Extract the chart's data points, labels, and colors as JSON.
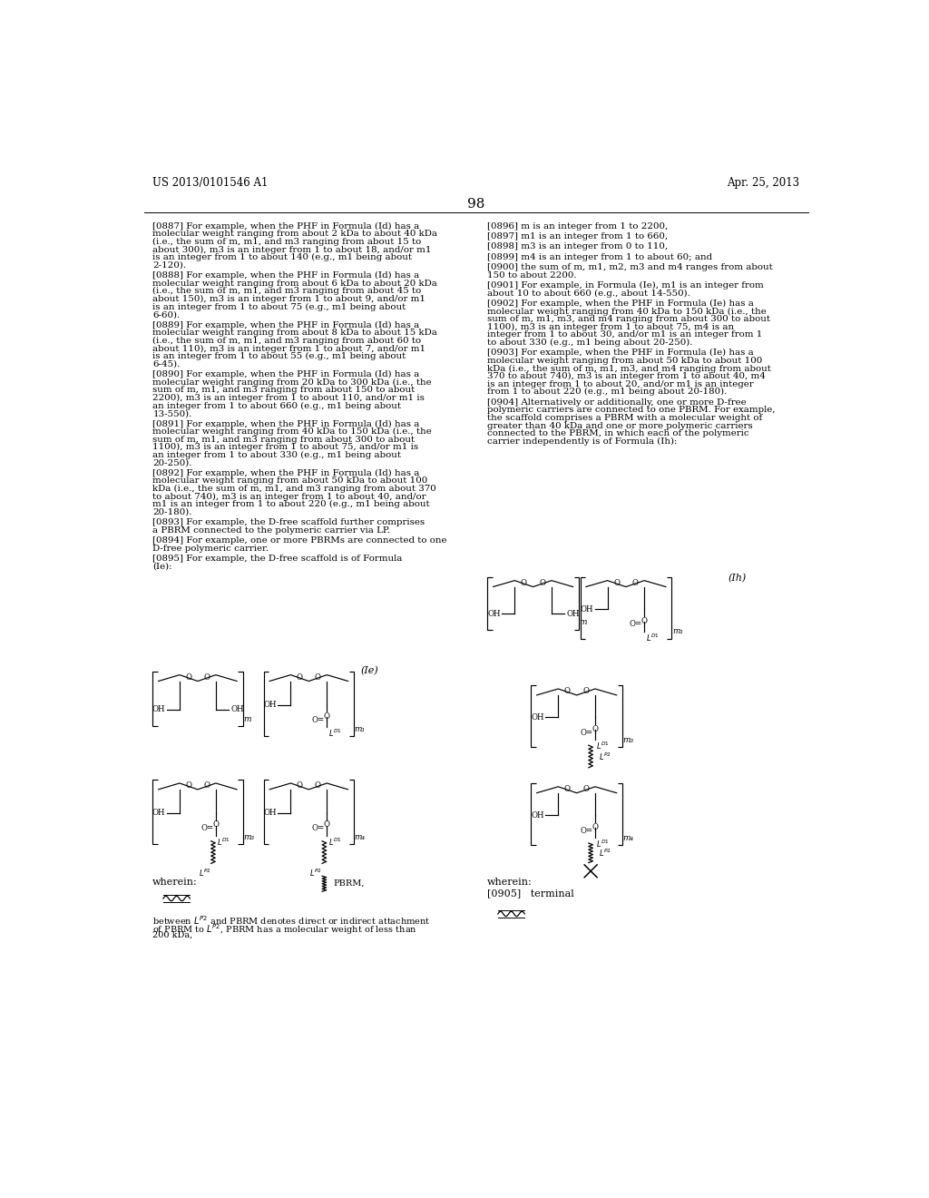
{
  "page_number": "98",
  "patent_number": "US 2013/0101546 A1",
  "patent_date": "Apr. 25, 2013",
  "background_color": "#ffffff",
  "text_color": "#000000",
  "left_col": [
    {
      "tag": "[0887]",
      "text": "For example, when the PHF in Formula (Id) has a molecular weight ranging from about 2 kDa to about 40 kDa (i.e., the sum of m, m1, and m3 ranging from about 15 to about 300), m3 is an integer from 1 to about 18, and/or m1 is an integer from 1 to about 140 (e.g., m1 being about 2-120)."
    },
    {
      "tag": "[0888]",
      "text": "For example, when the PHF in Formula (Id) has a molecular weight ranging from about 6 kDa to about 20 kDa (i.e., the sum of m, m1, and m3 ranging from about 45 to about 150), m3 is an integer from 1 to about 9, and/or m1 is an integer from 1 to about 75 (e.g., m1 being about 6-60)."
    },
    {
      "tag": "[0889]",
      "text": "For example, when the PHF in Formula (Id) has a molecular weight ranging from about 8 kDa to about 15 kDa (i.e., the sum of m, m1, and m3 ranging from about 60 to about 110), m3 is an integer from 1 to about 7, and/or m1 is an integer from 1 to about 55 (e.g., m1 being about 6-45)."
    },
    {
      "tag": "[0890]",
      "text": "For example, when the PHF in Formula (Id) has a molecular weight ranging from 20 kDa to 300 kDa (i.e., the sum of m, m1, and m3 ranging from about 150 to about 2200), m3 is an integer from 1 to about 110, and/or m1 is an integer from 1 to about 660 (e.g., m1 being about 13-550)."
    },
    {
      "tag": "[0891]",
      "text": "For example, when the PHF in Formula (Id) has a molecular weight ranging from 40 kDa to 150 kDa (i.e., the sum of m, m1, and m3 ranging from about 300 to about 1100), m3 is an integer from 1 to about 75, and/or m1 is an integer from 1 to about 330 (e.g., m1 being about 20-250)."
    },
    {
      "tag": "[0892]",
      "text": "For example, when the PHF in Formula (Id) has a molecular weight ranging from about 50 kDa to about 100 kDa (i.e., the sum of m, m1, and m3 ranging from about 370 to about 740), m3 is an integer from 1 to about 40, and/or m1 is an integer from 1 to about 220 (e.g., m1 being about 20-180)."
    },
    {
      "tag": "[0893]",
      "text": "For example, the D-free scaffold further comprises a PBRM connected to the polymeric carrier via LP."
    },
    {
      "tag": "[0894]",
      "text": "For example, one or more PBRMs are connected to one D-free polymeric carrier."
    },
    {
      "tag": "[0895]",
      "text": "For example, the D-free scaffold is of Formula (Ie):"
    }
  ],
  "right_col": [
    {
      "tag": "[0896]",
      "text": "m is an integer from 1 to 2200,"
    },
    {
      "tag": "[0897]",
      "text": "m1 is an integer from 1 to 660,"
    },
    {
      "tag": "[0898]",
      "text": "m3 is an integer from 0 to 110,"
    },
    {
      "tag": "[0899]",
      "text": "m4 is an integer from 1 to about 60; and"
    },
    {
      "tag": "[0900]",
      "text": "the sum of m, m1, m2, m3 and m4 ranges from about 150 to about 2200."
    },
    {
      "tag": "[0901]",
      "text": "For example, in Formula (Ie), m1 is an integer from about 10 to about 660 (e.g., about 14-550)."
    },
    {
      "tag": "[0902]",
      "text": "For example, when the PHF in Formula (Ie) has a molecular weight ranging from 40 kDa to 150 kDa (i.e., the sum of m, m1, m3, and m4 ranging from about 300 to about 1100), m3 is an integer from 1 to about 75, m4 is an integer from 1 to about 30, and/or m1 is an integer from 1 to about 330 (e.g., m1 being about 20-250)."
    },
    {
      "tag": "[0903]",
      "text": "For example, when the PHF in Formula (Ie) has a molecular weight ranging from about 50 kDa to about 100 kDa (i.e., the sum of m, m1, m3, and m4 ranging from about 370 to about 740), m3 is an integer from 1 to about 40, m4 is an integer from 1 to about 20, and/or m1 is an integer from 1 to about 220 (e.g., m1 being about 20-180)."
    },
    {
      "tag": "[0904]",
      "text": "Alternatively or additionally, one or more D-free polymeric carriers are connected to one PBRM. For example, the scaffold comprises a PBRM with a molecular weight of greater than 40 kDa and one or more polymeric carriers connected to the PBRM, in which each of the polymeric carrier independently is of Formula (Ih):"
    }
  ],
  "formula_Ie_label": "(Ie)",
  "formula_Ih_label": "(Ih)",
  "wherein_left": "wherein:",
  "wherein_right": "wherein:",
  "para_0905": "[0905]   terminal",
  "bottom_left_line1": "between L",
  "bottom_left_line2": "and PBRM denotes direct or indirect attachment",
  "bottom_left_line3": "of PBRM to L",
  "bottom_left_line4": ", PBRM has a molecular weight of less than",
  "bottom_left_line5": "200 kDa,",
  "PBRM_label": "PBRM,"
}
